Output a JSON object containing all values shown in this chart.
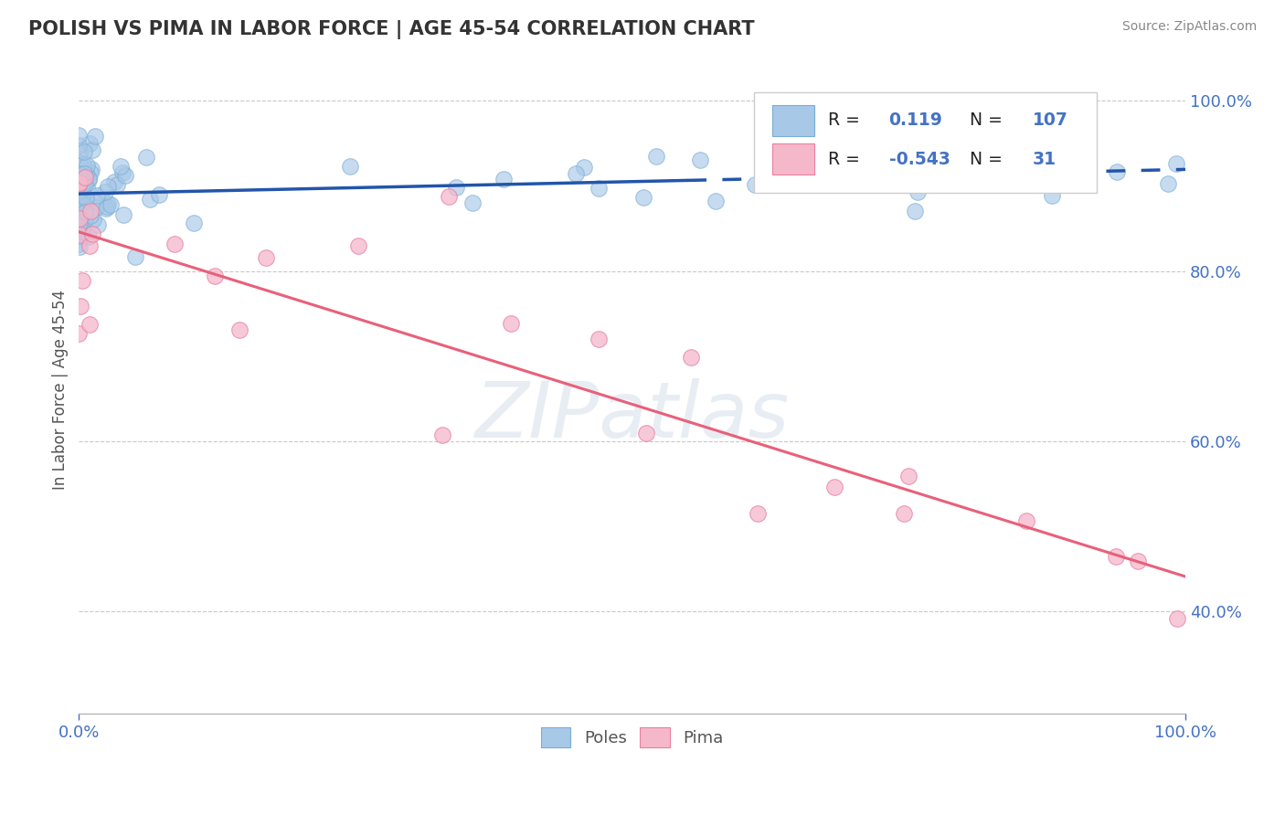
{
  "title": "POLISH VS PIMA IN LABOR FORCE | AGE 45-54 CORRELATION CHART",
  "source": "Source: ZipAtlas.com",
  "ylabel": "In Labor Force | Age 45-54",
  "xlim": [
    0.0,
    1.0
  ],
  "ylim": [
    0.28,
    1.04
  ],
  "poles_R": 0.119,
  "poles_N": 107,
  "pima_R": -0.543,
  "pima_N": 31,
  "poles_color": "#a8c8e8",
  "poles_edge_color": "#7aadd4",
  "poles_line_color": "#2255aa",
  "pima_color": "#f5b8cb",
  "pima_edge_color": "#e880a0",
  "pima_line_color": "#e8607a",
  "background_color": "#ffffff",
  "grid_color": "#bbbbbb",
  "watermark_color": "#d0dde8",
  "tick_color": "#4472c4",
  "legend_color": "#4472c4",
  "title_color": "#333333",
  "ylabel_color": "#555555",
  "source_color": "#888888"
}
